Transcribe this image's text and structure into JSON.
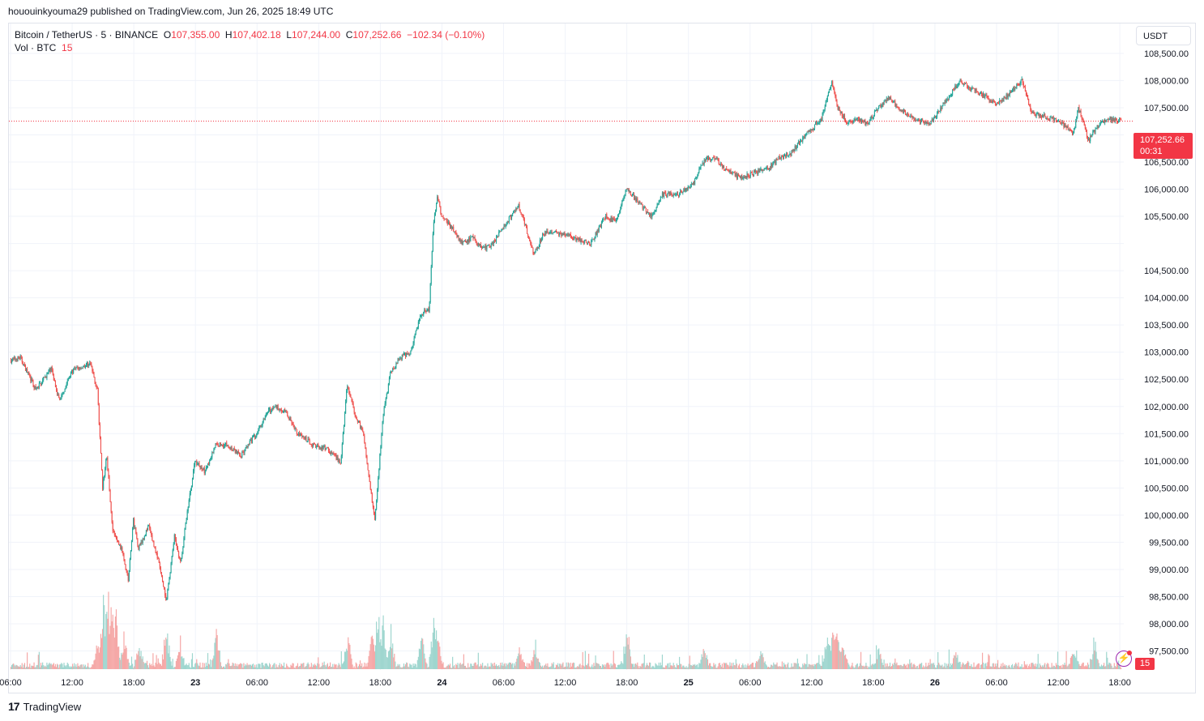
{
  "header": {
    "published_text": "hououinkyouma29 published on TradingView.com, Jun 26, 2025 18:49 UTC"
  },
  "legend": {
    "symbol": "Bitcoin / TetherUS · 5 · BINANCE",
    "o_label": "O",
    "o_value": "107,355.00",
    "h_label": "H",
    "h_value": "107,402.18",
    "l_label": "L",
    "l_value": "107,244.00",
    "c_label": "C",
    "c_value": "107,252.66",
    "change": "−102.34 (−0.10%)",
    "vol_label": "Vol · BTC",
    "vol_value": "15"
  },
  "price_axis": {
    "currency": "USDT"
  },
  "last_price": {
    "value": "107,252.66",
    "countdown": "00:31"
  },
  "volume_tag": "15",
  "footer": {
    "logo_mark": "17",
    "logo_text": "TradingView"
  },
  "colors": {
    "up": "#26a69a",
    "down": "#ef5350",
    "vol_up": "#9fd6cf",
    "vol_down": "#f5a8a7",
    "last_price": "#f23645",
    "grid": "#f0f3fa"
  },
  "chart_data": {
    "type": "candlestick",
    "symbol": "Bitcoin / TetherUS",
    "interval": "5",
    "exchange": "BINANCE",
    "y_ticks": [
      97500,
      98000,
      98500,
      99000,
      99500,
      100000,
      100500,
      101000,
      101500,
      102000,
      102500,
      103000,
      103500,
      104000,
      104500,
      105000,
      105500,
      106000,
      106500,
      107000,
      107500,
      108000,
      108500
    ],
    "y_tick_labels": [
      "97,500.00",
      "98,000.00",
      "98,500.00",
      "99,000.00",
      "99,500.00",
      "100,000.00",
      "100,500.00",
      "101,000.00",
      "101,500.00",
      "102,000.00",
      "102,500.00",
      "103,000.00",
      "103,500.00",
      "104,000.00",
      "104,500.00",
      "",
      "105,500.00",
      "106,000.00",
      "106,500.00",
      "",
      "107,500.00",
      "108,000.00",
      "108,500.00"
    ],
    "ylim": [
      97150,
      109050
    ],
    "x_ticks": [
      {
        "hours": 0,
        "label": "06:00"
      },
      {
        "hours": 6,
        "label": "12:00"
      },
      {
        "hours": 12,
        "label": "18:00"
      },
      {
        "hours": 18,
        "label": "23"
      },
      {
        "hours": 24,
        "label": "06:00"
      },
      {
        "hours": 30,
        "label": "12:00"
      },
      {
        "hours": 36,
        "label": "18:00"
      },
      {
        "hours": 42,
        "label": "24"
      },
      {
        "hours": 48,
        "label": "06:00"
      },
      {
        "hours": 54,
        "label": "12:00"
      },
      {
        "hours": 60,
        "label": "18:00"
      },
      {
        "hours": 66,
        "label": "25"
      },
      {
        "hours": 72,
        "label": "06:00"
      },
      {
        "hours": 78,
        "label": "12:00"
      },
      {
        "hours": 84,
        "label": "18:00"
      },
      {
        "hours": 90,
        "label": "26"
      },
      {
        "hours": 96,
        "label": "06:00"
      },
      {
        "hours": 102,
        "label": "12:00"
      },
      {
        "hours": 108,
        "label": "18:00"
      }
    ],
    "x_range_hours": [
      0,
      108.7
    ],
    "last_price": 107252.66,
    "price_path": [
      {
        "t": 0,
        "p": 102850
      },
      {
        "t": 1,
        "p": 102900
      },
      {
        "t": 2.5,
        "p": 102300
      },
      {
        "t": 4,
        "p": 102700
      },
      {
        "t": 4.8,
        "p": 102100
      },
      {
        "t": 6,
        "p": 102650
      },
      {
        "t": 7.8,
        "p": 102800
      },
      {
        "t": 8.5,
        "p": 102300
      },
      {
        "t": 9,
        "p": 100500
      },
      {
        "t": 9.4,
        "p": 101100
      },
      {
        "t": 10,
        "p": 99700
      },
      {
        "t": 11,
        "p": 99300
      },
      {
        "t": 11.5,
        "p": 98800
      },
      {
        "t": 12,
        "p": 99900
      },
      {
        "t": 12.5,
        "p": 99400
      },
      {
        "t": 13.5,
        "p": 99800
      },
      {
        "t": 14.5,
        "p": 99100
      },
      {
        "t": 15.2,
        "p": 98400
      },
      {
        "t": 16,
        "p": 99600
      },
      {
        "t": 16.6,
        "p": 99100
      },
      {
        "t": 17.2,
        "p": 100000
      },
      {
        "t": 18,
        "p": 101000
      },
      {
        "t": 19,
        "p": 100800
      },
      {
        "t": 20,
        "p": 101300
      },
      {
        "t": 21,
        "p": 101300
      },
      {
        "t": 22.5,
        "p": 101100
      },
      {
        "t": 24,
        "p": 101500
      },
      {
        "t": 25,
        "p": 101900
      },
      {
        "t": 26,
        "p": 102000
      },
      {
        "t": 27,
        "p": 101850
      },
      {
        "t": 28,
        "p": 101500
      },
      {
        "t": 29.5,
        "p": 101300
      },
      {
        "t": 31,
        "p": 101200
      },
      {
        "t": 32.2,
        "p": 100950
      },
      {
        "t": 32.8,
        "p": 102400
      },
      {
        "t": 33.5,
        "p": 101900
      },
      {
        "t": 34.4,
        "p": 101500
      },
      {
        "t": 35.5,
        "p": 99900
      },
      {
        "t": 36.3,
        "p": 101800
      },
      {
        "t": 37,
        "p": 102600
      },
      {
        "t": 38,
        "p": 102900
      },
      {
        "t": 39,
        "p": 103000
      },
      {
        "t": 40,
        "p": 103700
      },
      {
        "t": 40.8,
        "p": 103800
      },
      {
        "t": 41.2,
        "p": 105300
      },
      {
        "t": 41.6,
        "p": 105900
      },
      {
        "t": 42,
        "p": 105500
      },
      {
        "t": 43,
        "p": 105300
      },
      {
        "t": 44,
        "p": 105000
      },
      {
        "t": 45,
        "p": 105100
      },
      {
        "t": 46,
        "p": 104900
      },
      {
        "t": 47,
        "p": 105000
      },
      {
        "t": 48,
        "p": 105300
      },
      {
        "t": 49.5,
        "p": 105700
      },
      {
        "t": 50.2,
        "p": 105300
      },
      {
        "t": 51,
        "p": 104800
      },
      {
        "t": 52,
        "p": 105200
      },
      {
        "t": 53.5,
        "p": 105200
      },
      {
        "t": 55,
        "p": 105100
      },
      {
        "t": 56.5,
        "p": 105000
      },
      {
        "t": 58,
        "p": 105500
      },
      {
        "t": 59,
        "p": 105400
      },
      {
        "t": 60,
        "p": 106000
      },
      {
        "t": 61,
        "p": 105800
      },
      {
        "t": 62.5,
        "p": 105500
      },
      {
        "t": 63.5,
        "p": 105900
      },
      {
        "t": 65,
        "p": 105900
      },
      {
        "t": 66.5,
        "p": 106100
      },
      {
        "t": 67.5,
        "p": 106500
      },
      {
        "t": 68.5,
        "p": 106600
      },
      {
        "t": 69.5,
        "p": 106400
      },
      {
        "t": 71,
        "p": 106200
      },
      {
        "t": 72.5,
        "p": 106300
      },
      {
        "t": 74,
        "p": 106400
      },
      {
        "t": 75,
        "p": 106600
      },
      {
        "t": 76,
        "p": 106650
      },
      {
        "t": 77,
        "p": 106900
      },
      {
        "t": 78,
        "p": 107100
      },
      {
        "t": 79,
        "p": 107300
      },
      {
        "t": 80,
        "p": 108000
      },
      {
        "t": 80.6,
        "p": 107500
      },
      {
        "t": 81.5,
        "p": 107200
      },
      {
        "t": 82.5,
        "p": 107300
      },
      {
        "t": 83.5,
        "p": 107200
      },
      {
        "t": 84.5,
        "p": 107500
      },
      {
        "t": 85.5,
        "p": 107700
      },
      {
        "t": 86.5,
        "p": 107500
      },
      {
        "t": 88,
        "p": 107300
      },
      {
        "t": 89.5,
        "p": 107200
      },
      {
        "t": 91,
        "p": 107600
      },
      {
        "t": 92.5,
        "p": 108000
      },
      {
        "t": 93.5,
        "p": 107850
      },
      {
        "t": 95,
        "p": 107700
      },
      {
        "t": 96,
        "p": 107550
      },
      {
        "t": 97.5,
        "p": 107800
      },
      {
        "t": 98.5,
        "p": 108000
      },
      {
        "t": 99.5,
        "p": 107400
      },
      {
        "t": 100.5,
        "p": 107350
      },
      {
        "t": 101.5,
        "p": 107300
      },
      {
        "t": 102.5,
        "p": 107200
      },
      {
        "t": 103.5,
        "p": 107000
      },
      {
        "t": 104,
        "p": 107500
      },
      {
        "t": 105,
        "p": 106900
      },
      {
        "t": 106,
        "p": 107200
      },
      {
        "t": 107,
        "p": 107300
      },
      {
        "t": 108.1,
        "p": 107250
      }
    ],
    "volume_spikes": [
      {
        "t": 8.5,
        "v": 50
      },
      {
        "t": 9,
        "v": 130
      },
      {
        "t": 9.4,
        "v": 175
      },
      {
        "t": 9.8,
        "v": 120
      },
      {
        "t": 10.2,
        "v": 95
      },
      {
        "t": 11,
        "v": 60
      },
      {
        "t": 12.5,
        "v": 40
      },
      {
        "t": 15.2,
        "v": 60
      },
      {
        "t": 16.5,
        "v": 35
      },
      {
        "t": 20,
        "v": 65
      },
      {
        "t": 32.8,
        "v": 55
      },
      {
        "t": 35.2,
        "v": 75
      },
      {
        "t": 35.7,
        "v": 95
      },
      {
        "t": 36.2,
        "v": 100
      },
      {
        "t": 37,
        "v": 70
      },
      {
        "t": 40,
        "v": 65
      },
      {
        "t": 41.2,
        "v": 115
      },
      {
        "t": 41.6,
        "v": 55
      },
      {
        "t": 49.5,
        "v": 30
      },
      {
        "t": 51,
        "v": 30
      },
      {
        "t": 60,
        "v": 70
      },
      {
        "t": 67.5,
        "v": 35
      },
      {
        "t": 73,
        "v": 30
      },
      {
        "t": 79.5,
        "v": 65
      },
      {
        "t": 80,
        "v": 70
      },
      {
        "t": 80.4,
        "v": 72
      },
      {
        "t": 81,
        "v": 55
      },
      {
        "t": 84.5,
        "v": 30
      },
      {
        "t": 92,
        "v": 30
      },
      {
        "t": 103.5,
        "v": 30
      },
      {
        "t": 105.5,
        "v": 45
      }
    ],
    "volume_scale_max": 180,
    "volume_last": 15
  }
}
